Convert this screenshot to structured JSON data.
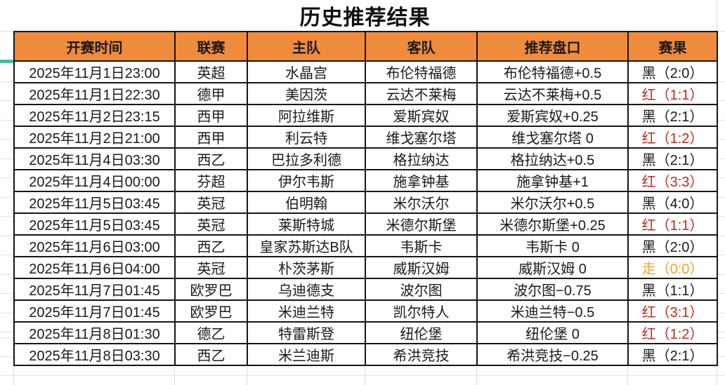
{
  "title": "历史推荐结果",
  "table": {
    "headers": [
      "开赛时间",
      "联赛",
      "主队",
      "客队",
      "推荐盘口",
      "赛果"
    ],
    "rows": [
      {
        "time": "2025年11月1日23:00",
        "league": "英超",
        "home": "水晶宫",
        "away": "布伦特福德",
        "handicap": "布伦特福德+0.5",
        "result": "黑（2:0）",
        "result_color": "black"
      },
      {
        "time": "2025年11月1日22:30",
        "league": "德甲",
        "home": "美因茨",
        "away": "云达不莱梅",
        "handicap": "云达不莱梅+0.5",
        "result": "红（1:1）",
        "result_color": "red"
      },
      {
        "time": "2025年11月2日23:15",
        "league": "西甲",
        "home": "阿拉维斯",
        "away": "爱斯宾奴",
        "handicap": "爱斯宾奴+0.25",
        "result": "黑（2:1）",
        "result_color": "black"
      },
      {
        "time": "2025年11月2日21:00",
        "league": "西甲",
        "home": "利云特",
        "away": "维戈塞尔塔",
        "handicap": "维戈塞尔塔 0",
        "result": "红（1:2）",
        "result_color": "red"
      },
      {
        "time": "2025年11月4日03:30",
        "league": "西乙",
        "home": "巴拉多利德",
        "away": "格拉纳达",
        "handicap": "格拉纳达+0.5",
        "result": "黑（2:1）",
        "result_color": "black"
      },
      {
        "time": "2025年11月4日00:00",
        "league": "芬超",
        "home": "伊尔韦斯",
        "away": "施拿钟基",
        "handicap": "施拿钟基+1",
        "result": "红（3:3）",
        "result_color": "red"
      },
      {
        "time": "2025年11月5日03:45",
        "league": "英冠",
        "home": "伯明翰",
        "away": "米尔沃尔",
        "handicap": "米尔沃尔+0.5",
        "result": "黑（4:0）",
        "result_color": "black"
      },
      {
        "time": "2025年11月5日03:45",
        "league": "英冠",
        "home": "莱斯特城",
        "away": "米德尔斯堡",
        "handicap": "米德尔斯堡+0.25",
        "result": "红（1:1）",
        "result_color": "red"
      },
      {
        "time": "2025年11月6日03:00",
        "league": "西乙",
        "home": "皇家苏斯达B队",
        "away": "韦斯卡",
        "handicap": "韦斯卡 0",
        "result": "黑（2:0）",
        "result_color": "black"
      },
      {
        "time": "2025年11月6日04:00",
        "league": "英冠",
        "home": "朴茨茅斯",
        "away": "威斯汉姆",
        "handicap": "威斯汉姆 0",
        "result": "走（0:0）",
        "result_color": "push"
      },
      {
        "time": "2025年11月7日01:45",
        "league": "欧罗巴",
        "home": "乌迪德支",
        "away": "波尔图",
        "handicap": "波尔图−0.75",
        "result": "黑（1:1）",
        "result_color": "black"
      },
      {
        "time": "2025年11月7日01:45",
        "league": "欧罗巴",
        "home": "米迪兰特",
        "away": "凯尔特人",
        "handicap": "米迪兰特−0.5",
        "result": "红（3:1）",
        "result_color": "red"
      },
      {
        "time": "2025年11月8日01:30",
        "league": "德乙",
        "home": "特雷斯登",
        "away": "纽伦堡",
        "handicap": "纽伦堡 0",
        "result": "红（1:2）",
        "result_color": "red"
      },
      {
        "time": "2025年11月8日03:30",
        "league": "西乙",
        "home": "米兰迪斯",
        "away": "希洪竞技",
        "handicap": "希洪竞技−0.25",
        "result": "黑（2:1）",
        "result_color": "black"
      }
    ]
  },
  "colors": {
    "header_bg": "#F08B3C",
    "result_black": "#1A1A1A",
    "result_red": "#C5281C",
    "result_push": "#F0A232",
    "accent_green": "#46BE9C"
  }
}
